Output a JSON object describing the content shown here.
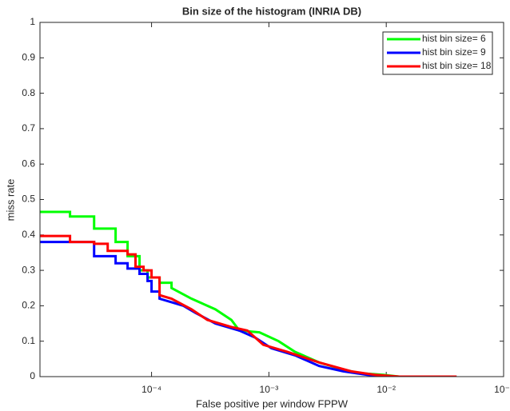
{
  "chart_data": {
    "type": "line",
    "title": "Bin size of the histogram (INRIA DB)",
    "x_label": "False positive per window FPPW",
    "y_label": "miss rate",
    "x_scale": "log",
    "xlim": [
      1.12e-05,
      0.1
    ],
    "ylim": [
      0,
      1
    ],
    "xticks": [
      {
        "value": 0.0001,
        "label": "10⁻⁴"
      },
      {
        "value": 0.001,
        "label": "10⁻³"
      },
      {
        "value": 0.01,
        "label": "10⁻²"
      },
      {
        "value": 0.1,
        "label": "10⁻¹"
      }
    ],
    "yticks": [
      0,
      0.1,
      0.2,
      0.3,
      0.4,
      0.5,
      0.6,
      0.7,
      0.8,
      0.9,
      1
    ],
    "legend_position": "upper right",
    "series": [
      {
        "name": "hist bin size= 6",
        "color": "#00ff00",
        "x": [
          1.12e-05,
          2.02e-05,
          2.02e-05,
          3.24e-05,
          3.24e-05,
          4.94e-05,
          4.94e-05,
          6.25e-05,
          6.25e-05,
          7.9e-05,
          7.9e-05,
          9.25e-05,
          9.25e-05,
          0.000117,
          0.000117,
          0.000148,
          0.000148,
          0.000219,
          0.00035,
          0.000479,
          0.00056,
          0.00083,
          0.00121,
          0.00167,
          0.00268,
          0.0043,
          0.00587,
          0.0094,
          0.0129,
          0.0397
        ],
        "values": [
          0.465,
          0.465,
          0.452,
          0.452,
          0.418,
          0.418,
          0.38,
          0.38,
          0.34,
          0.34,
          0.3,
          0.3,
          0.28,
          0.28,
          0.265,
          0.265,
          0.25,
          0.22,
          0.19,
          0.16,
          0.13,
          0.125,
          0.1,
          0.07,
          0.04,
          0.02,
          0.01,
          0.005,
          0,
          0
        ]
      },
      {
        "name": "hist bin size= 9",
        "color": "#0000ff",
        "x": [
          1.12e-05,
          3.24e-05,
          3.24e-05,
          4.94e-05,
          4.94e-05,
          6.25e-05,
          6.25e-05,
          7.9e-05,
          7.9e-05,
          9.25e-05,
          9.25e-05,
          0.0001,
          0.0001,
          0.000117,
          0.000117,
          0.000187,
          0.000237,
          0.00035,
          0.00056,
          0.000766,
          0.00105,
          0.00167,
          0.00268,
          0.0043,
          0.00687,
          0.011,
          0.0397
        ],
        "values": [
          0.38,
          0.38,
          0.34,
          0.34,
          0.32,
          0.32,
          0.305,
          0.305,
          0.29,
          0.29,
          0.27,
          0.27,
          0.24,
          0.24,
          0.22,
          0.2,
          0.18,
          0.15,
          0.13,
          0.11,
          0.08,
          0.06,
          0.03,
          0.015,
          0.005,
          0,
          0
        ]
      },
      {
        "name": "hist bin size= 18",
        "color": "#ff0000",
        "x": [
          1.12e-05,
          2.02e-05,
          2.02e-05,
          3.24e-05,
          3.24e-05,
          4.23e-05,
          4.23e-05,
          6.25e-05,
          6.25e-05,
          7.3e-05,
          7.3e-05,
          8.55e-05,
          8.55e-05,
          0.0001,
          0.0001,
          0.000117,
          0.000117,
          0.000148,
          0.000219,
          0.000299,
          0.000479,
          0.000655,
          0.000895,
          0.00143,
          0.00268,
          0.00502,
          0.008,
          0.0129,
          0.0397
        ],
        "values": [
          0.397,
          0.397,
          0.38,
          0.38,
          0.375,
          0.375,
          0.355,
          0.355,
          0.345,
          0.345,
          0.31,
          0.31,
          0.3,
          0.3,
          0.28,
          0.28,
          0.23,
          0.22,
          0.19,
          0.16,
          0.14,
          0.13,
          0.09,
          0.07,
          0.04,
          0.015,
          0.005,
          0,
          0
        ]
      }
    ]
  }
}
